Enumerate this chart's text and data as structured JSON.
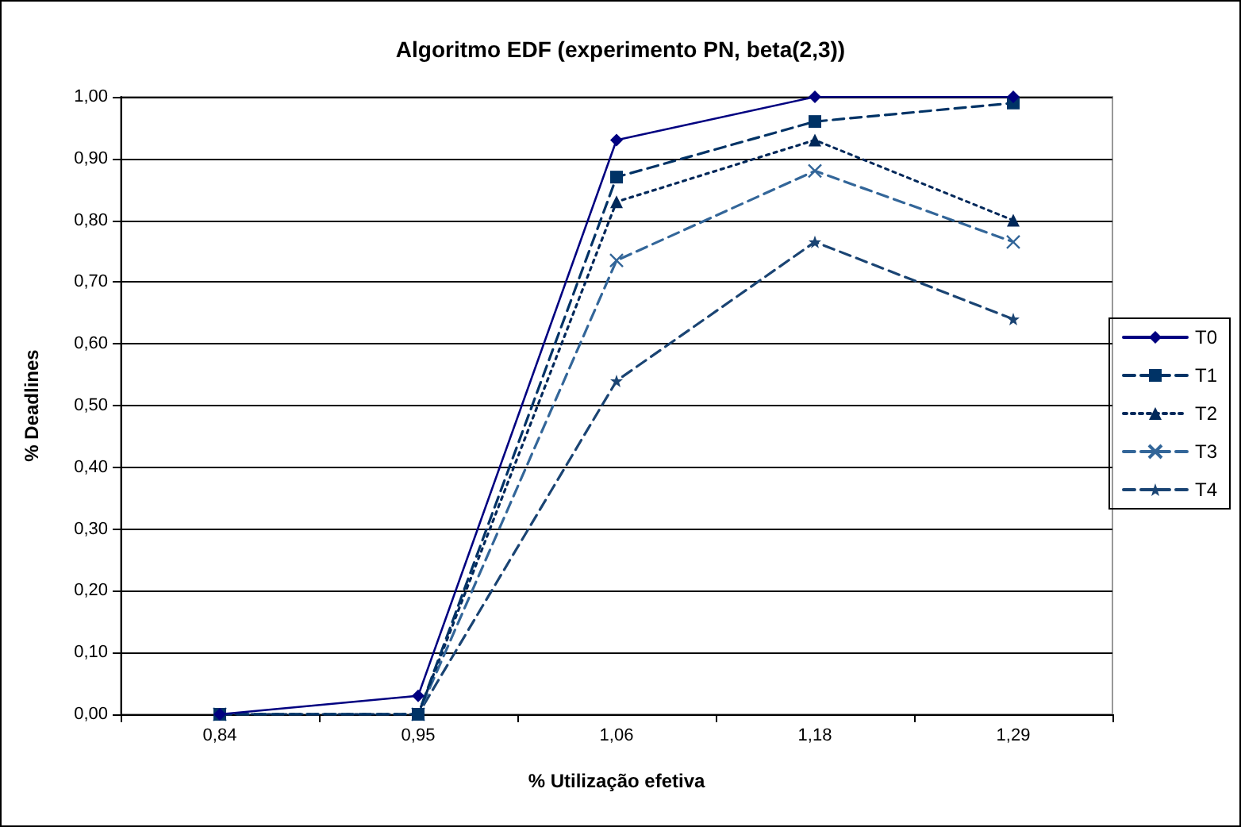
{
  "chart_data": {
    "type": "line",
    "title": "Algoritmo EDF (experimento PN, beta(2,3))",
    "xlabel": "% Utilização efetiva",
    "ylabel": "% Deadlines",
    "categories": [
      "0,84",
      "0,95",
      "1,06",
      "1,18",
      "1,29"
    ],
    "series": [
      {
        "name": "T0",
        "color": "#000080",
        "marker": "diamond",
        "line_style": "solid",
        "values": [
          0,
          0.03,
          0.93,
          1.0,
          1.0
        ]
      },
      {
        "name": "T1",
        "color": "#003366",
        "marker": "square",
        "line_style": "dashed",
        "values": [
          0,
          0,
          0.87,
          0.96,
          0.99
        ]
      },
      {
        "name": "T2",
        "color": "#00285a",
        "marker": "triangle",
        "line_style": "dotted",
        "values": [
          0,
          0,
          0.83,
          0.93,
          0.8
        ]
      },
      {
        "name": "T3",
        "color": "#336699",
        "marker": "cross",
        "line_style": "dashed",
        "values": [
          0,
          0,
          0.735,
          0.88,
          0.765
        ]
      },
      {
        "name": "T4",
        "color": "#1a4473",
        "marker": "star",
        "line_style": "dashed",
        "values": [
          0,
          0,
          0.54,
          0.765,
          0.64
        ]
      }
    ],
    "ylim": [
      0,
      1
    ],
    "yticks": [
      {
        "value": 0,
        "label": "0,00"
      },
      {
        "value": 0.1,
        "label": "0,10"
      },
      {
        "value": 0.2,
        "label": "0,20"
      },
      {
        "value": 0.3,
        "label": "0,30"
      },
      {
        "value": 0.4,
        "label": "0,40"
      },
      {
        "value": 0.5,
        "label": "0,50"
      },
      {
        "value": 0.6,
        "label": "0,60"
      },
      {
        "value": 0.7,
        "label": "0,70"
      },
      {
        "value": 0.8,
        "label": "0,80"
      },
      {
        "value": 0.9,
        "label": "0,90"
      },
      {
        "value": 1,
        "label": "1,00"
      }
    ],
    "grid": "y",
    "legend": "right"
  }
}
